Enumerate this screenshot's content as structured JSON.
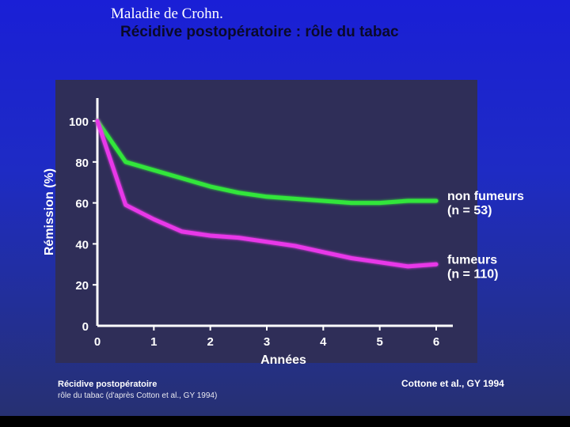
{
  "slide": {
    "title": "Maladie de  Crohn.",
    "subtitle": "Récidive postopératoire : rôle du tabac"
  },
  "caption": {
    "title": "Récidive postopératoire",
    "text": "rôle du tabac (d'après Cotton et al., GY 1994)",
    "citation": "Cottone et al., GY 1994"
  },
  "colors": {
    "non_smokers": "#33e63a",
    "smokers": "#e838e8",
    "axis": "#ffffff",
    "text": "#ffffff"
  },
  "chart_data": {
    "type": "line",
    "title": "",
    "xlabel": "Années",
    "ylabel": "Rémission (%)",
    "xlim": [
      0,
      6.3
    ],
    "ylim": [
      0,
      105
    ],
    "xticks": [
      0,
      1,
      2,
      3,
      4,
      5,
      6
    ],
    "yticks": [
      0,
      20,
      40,
      60,
      80,
      100
    ],
    "grid": false,
    "series": [
      {
        "name": "non fumeurs",
        "n_label": "(n = 53)",
        "color": "#33e63a",
        "x": [
          0,
          0.5,
          1,
          1.5,
          2,
          2.5,
          3,
          3.5,
          4,
          4.5,
          5,
          5.5,
          6
        ],
        "y": [
          100,
          80,
          76,
          72,
          68,
          65,
          63,
          62,
          61,
          60,
          60,
          61,
          61
        ]
      },
      {
        "name": "fumeurs",
        "n_label": "(n = 110)",
        "color": "#e838e8",
        "x": [
          0,
          0.5,
          1,
          1.5,
          2,
          2.5,
          3,
          3.5,
          4,
          4.5,
          5,
          5.5,
          6
        ],
        "y": [
          100,
          59,
          52,
          46,
          44,
          43,
          41,
          39,
          36,
          33,
          31,
          29,
          30
        ]
      }
    ]
  }
}
